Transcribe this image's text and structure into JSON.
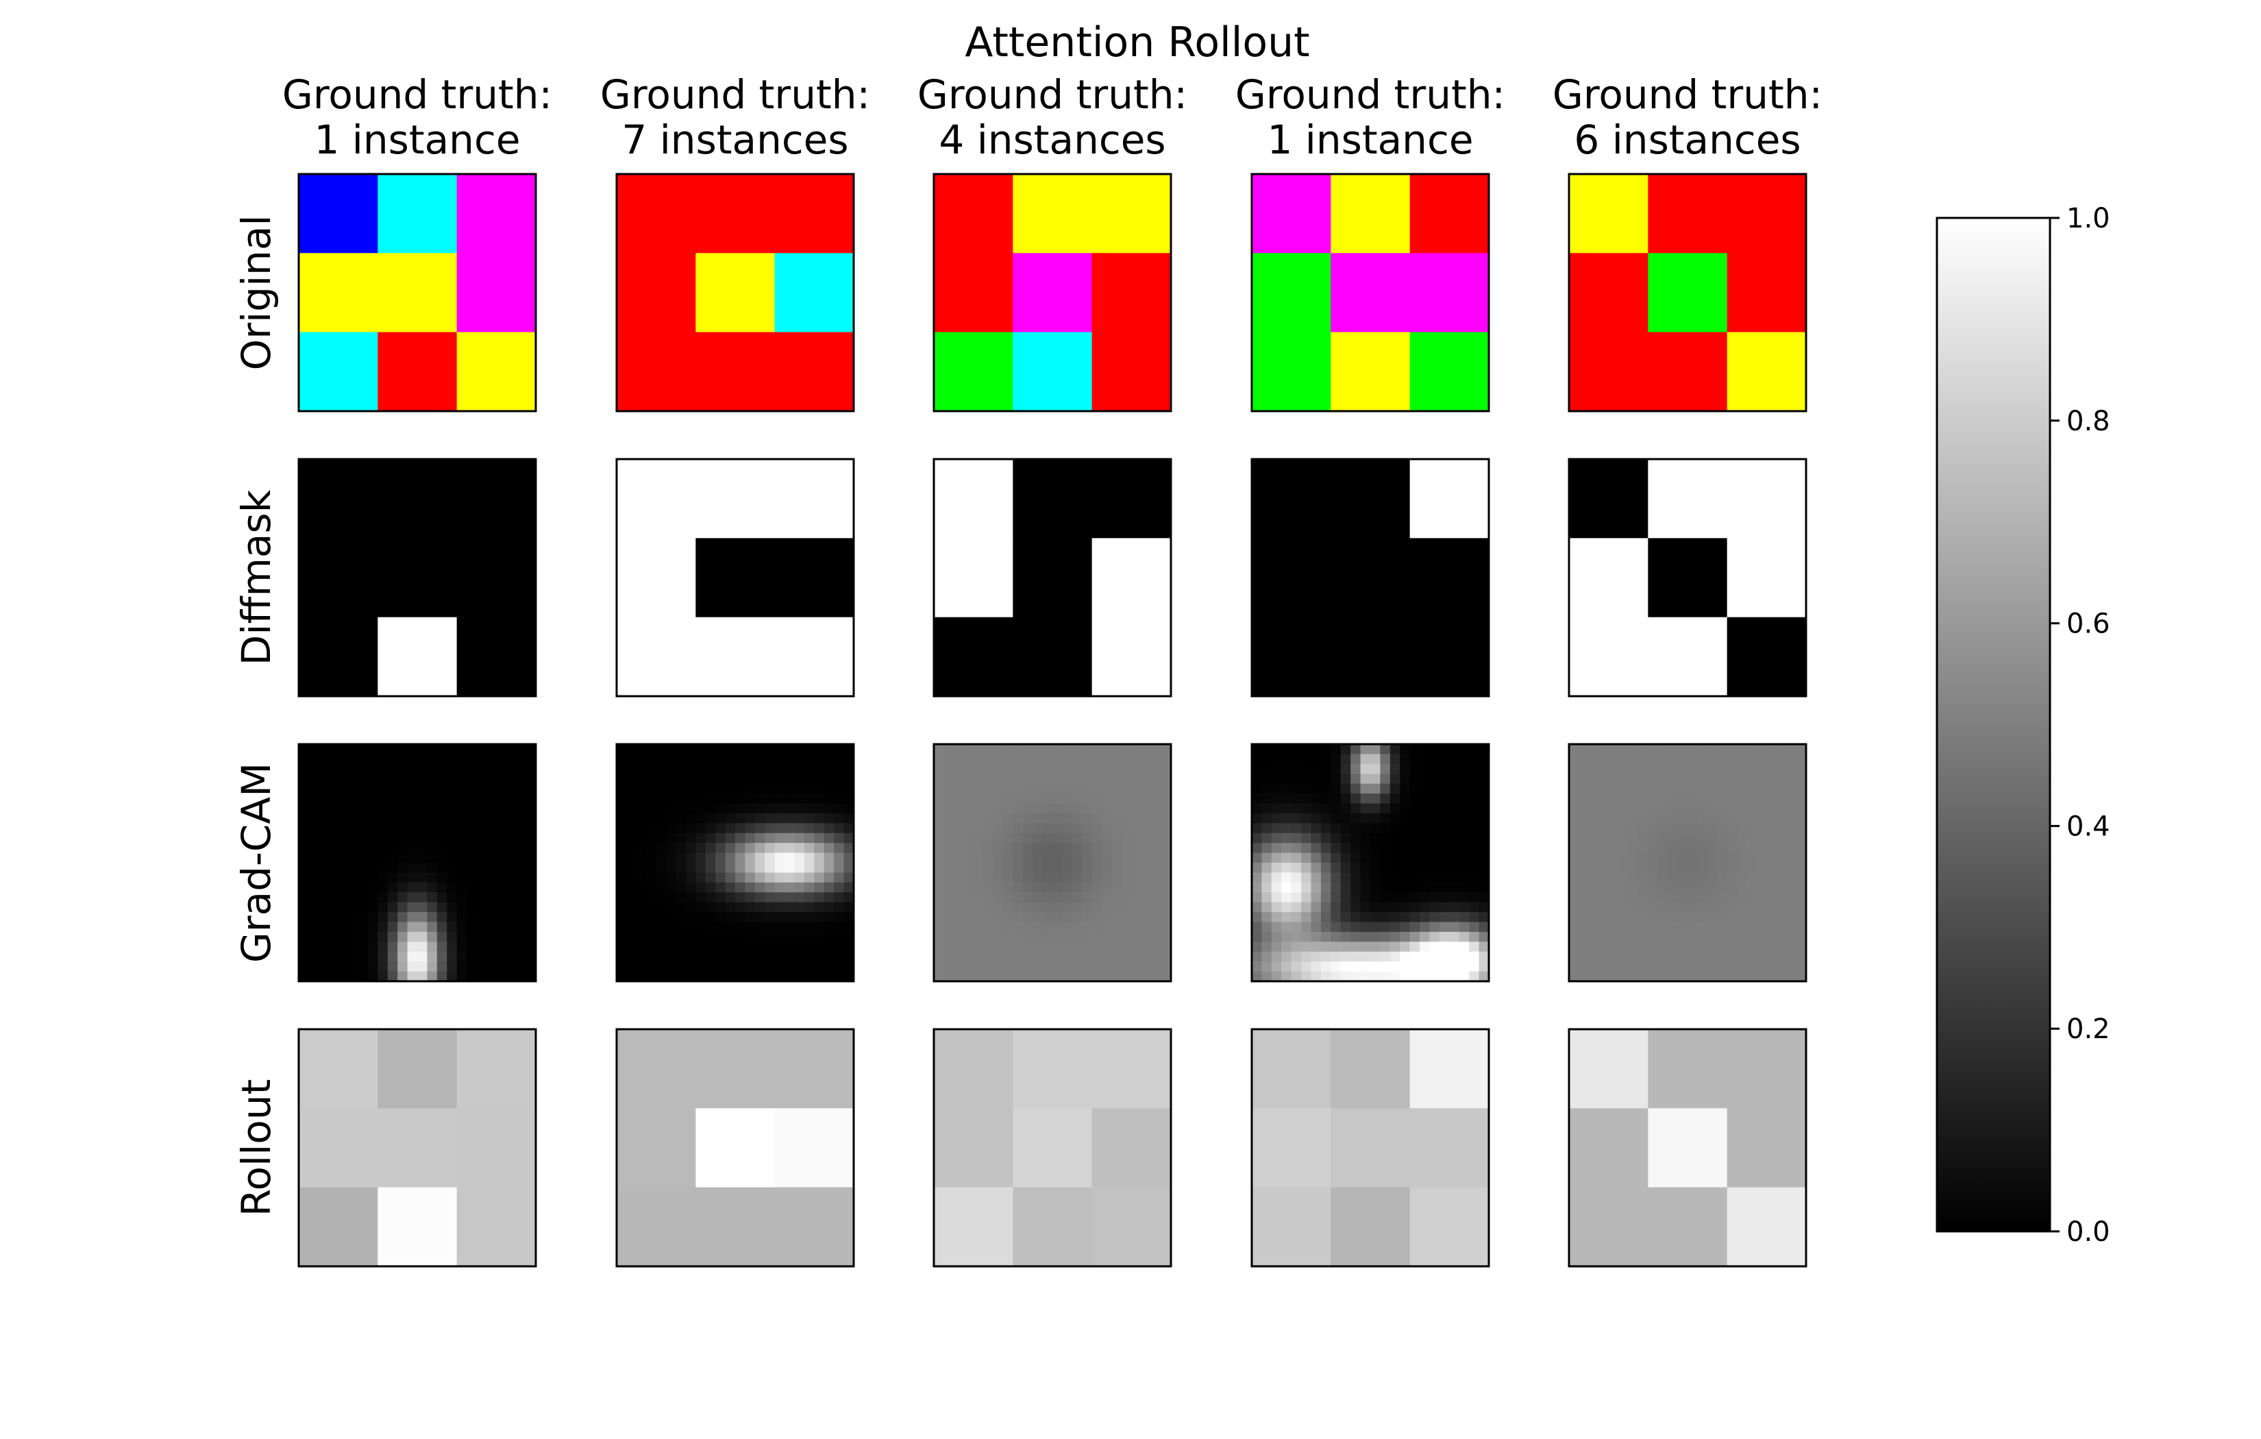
{
  "chart_data": {
    "type": "heatmap",
    "title": "Attention Rollout",
    "column_titles": [
      [
        "Ground truth:",
        "1 instance"
      ],
      [
        "Ground truth:",
        "7 instances"
      ],
      [
        "Ground truth:",
        "4 instances"
      ],
      [
        "Ground truth:",
        "1 instance"
      ],
      [
        "Ground truth:",
        "6 instances"
      ]
    ],
    "row_labels": [
      "Original",
      "Diffmask",
      "Grad-CAM",
      "Rollout"
    ],
    "palette": {
      "B": "#0000ff",
      "C": "#00ffff",
      "M": "#ff00ff",
      "Y": "#ffff00",
      "R": "#ff0000",
      "G": "#00ff00"
    },
    "original": [
      [
        [
          "B",
          "C",
          "M"
        ],
        [
          "Y",
          "Y",
          "M"
        ],
        [
          "C",
          "R",
          "Y"
        ]
      ],
      [
        [
          "R",
          "R",
          "R"
        ],
        [
          "R",
          "Y",
          "C"
        ],
        [
          "R",
          "R",
          "R"
        ]
      ],
      [
        [
          "R",
          "Y",
          "Y"
        ],
        [
          "R",
          "M",
          "R"
        ],
        [
          "G",
          "C",
          "R"
        ]
      ],
      [
        [
          "M",
          "Y",
          "R"
        ],
        [
          "G",
          "M",
          "M"
        ],
        [
          "G",
          "Y",
          "G"
        ]
      ],
      [
        [
          "Y",
          "R",
          "R"
        ],
        [
          "R",
          "G",
          "R"
        ],
        [
          "R",
          "R",
          "Y"
        ]
      ]
    ],
    "diffmask": [
      [
        [
          0,
          0,
          0
        ],
        [
          0,
          0,
          0
        ],
        [
          0,
          1,
          0
        ]
      ],
      [
        [
          1,
          1,
          1
        ],
        [
          1,
          0,
          0
        ],
        [
          1,
          1,
          1
        ]
      ],
      [
        [
          1,
          0,
          0
        ],
        [
          1,
          0,
          1
        ],
        [
          0,
          0,
          1
        ]
      ],
      [
        [
          0,
          0,
          1
        ],
        [
          0,
          0,
          0
        ],
        [
          0,
          0,
          0
        ]
      ],
      [
        [
          0,
          1,
          1
        ],
        [
          1,
          0,
          1
        ],
        [
          1,
          1,
          0
        ]
      ]
    ],
    "gradcam": [
      {
        "base": 0.0,
        "blobs": [
          {
            "cx": 0.5,
            "cy": 0.9,
            "sx": 0.1,
            "sy": 0.2,
            "amp": 1.0
          }
        ]
      },
      {
        "base": 0.0,
        "blobs": [
          {
            "cx": 0.72,
            "cy": 0.5,
            "sx": 0.26,
            "sy": 0.13,
            "amp": 1.0
          }
        ]
      },
      {
        "base": 0.5,
        "blobs": [
          {
            "cx": 0.5,
            "cy": 0.5,
            "sx": 0.2,
            "sy": 0.2,
            "amp": -0.12
          }
        ]
      },
      {
        "base": 0.0,
        "blobs": [
          {
            "cx": 0.5,
            "cy": 0.1,
            "sx": 0.08,
            "sy": 0.13,
            "amp": 0.85
          },
          {
            "cx": 0.15,
            "cy": 0.6,
            "sx": 0.18,
            "sy": 0.2,
            "amp": 1.0
          },
          {
            "cx": 0.45,
            "cy": 0.95,
            "sx": 0.5,
            "sy": 0.14,
            "amp": 1.0
          },
          {
            "cx": 0.85,
            "cy": 0.9,
            "sx": 0.18,
            "sy": 0.14,
            "amp": 0.9
          }
        ]
      },
      {
        "base": 0.5,
        "blobs": [
          {
            "cx": 0.5,
            "cy": 0.5,
            "sx": 0.2,
            "sy": 0.2,
            "amp": -0.05
          }
        ]
      }
    ],
    "rollout": [
      [
        [
          0.8,
          0.71,
          0.79
        ],
        [
          0.79,
          0.79,
          0.78
        ],
        [
          0.7,
          0.99,
          0.78
        ]
      ],
      [
        [
          0.73,
          0.73,
          0.73
        ],
        [
          0.73,
          1.0,
          0.98
        ],
        [
          0.72,
          0.72,
          0.72
        ]
      ],
      [
        [
          0.76,
          0.81,
          0.81
        ],
        [
          0.76,
          0.83,
          0.75
        ],
        [
          0.86,
          0.75,
          0.76
        ]
      ],
      [
        [
          0.78,
          0.73,
          0.95
        ],
        [
          0.81,
          0.78,
          0.78
        ],
        [
          0.79,
          0.71,
          0.81
        ]
      ],
      [
        [
          0.91,
          0.72,
          0.72
        ],
        [
          0.72,
          0.97,
          0.72
        ],
        [
          0.72,
          0.72,
          0.92
        ]
      ]
    ],
    "colorbar": {
      "colormap": "gray",
      "range": [
        0,
        1
      ],
      "ticks": [
        "0.0",
        "0.2",
        "0.4",
        "0.6",
        "0.8",
        "1.0"
      ]
    }
  }
}
